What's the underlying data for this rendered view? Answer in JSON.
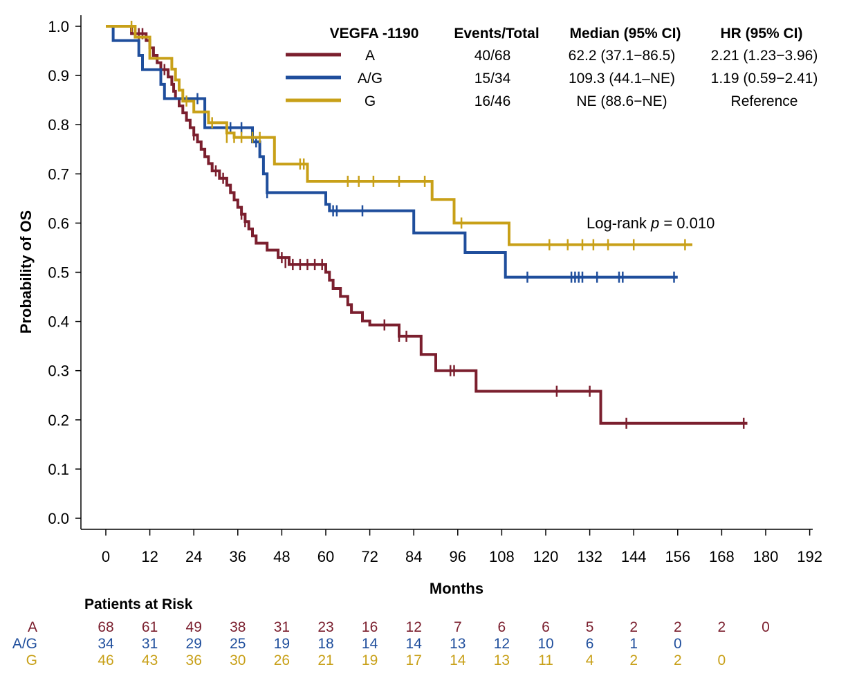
{
  "chart_data": {
    "type": "line",
    "subtype": "kaplan-meier",
    "title": "",
    "xlabel": "Months",
    "ylabel": "Probability of OS",
    "xlim": [
      0,
      192
    ],
    "ylim": [
      0,
      1
    ],
    "xticks": [
      0,
      12,
      24,
      36,
      48,
      60,
      72,
      84,
      96,
      108,
      120,
      132,
      144,
      156,
      168,
      180,
      192
    ],
    "yticks": [
      "0.0",
      "0.1",
      "0.2",
      "0.3",
      "0.4",
      "0.5",
      "0.6",
      "0.7",
      "0.8",
      "0.9",
      "1.0"
    ],
    "legend": {
      "headers": [
        "VEGFA -1190",
        "Events/Total",
        "Median (95% CI)",
        "HR (95% CI)"
      ],
      "placement": "top-right"
    },
    "annotation": {
      "prefix": "Log-rank ",
      "p_symbol": "p",
      "suffix": " = 0.010"
    },
    "series": [
      {
        "name": "A",
        "color": "#7b1f2e",
        "events_total": "40/68",
        "median": "62.2 (37.1−86.5)",
        "hr": "2.21 (1.23−3.96)",
        "steps": [
          [
            0,
            1.0
          ],
          [
            7,
            0.985
          ],
          [
            11,
            0.971
          ],
          [
            12,
            0.956
          ],
          [
            13,
            0.941
          ],
          [
            14,
            0.926
          ],
          [
            15,
            0.912
          ],
          [
            17,
            0.897
          ],
          [
            18,
            0.882
          ],
          [
            18.5,
            0.868
          ],
          [
            19,
            0.853
          ],
          [
            20,
            0.838
          ],
          [
            21,
            0.824
          ],
          [
            22,
            0.809
          ],
          [
            23,
            0.794
          ],
          [
            24,
            0.779
          ],
          [
            25,
            0.765
          ],
          [
            26,
            0.75
          ],
          [
            27,
            0.735
          ],
          [
            28,
            0.721
          ],
          [
            29,
            0.706
          ],
          [
            31,
            0.691
          ],
          [
            33,
            0.677
          ],
          [
            34,
            0.662
          ],
          [
            35,
            0.647
          ],
          [
            36,
            0.632
          ],
          [
            37,
            0.618
          ],
          [
            38,
            0.603
          ],
          [
            39,
            0.588
          ],
          [
            40,
            0.574
          ],
          [
            41,
            0.559
          ],
          [
            44,
            0.545
          ],
          [
            47,
            0.53
          ],
          [
            50,
            0.516
          ],
          [
            60,
            0.5
          ],
          [
            61,
            0.484
          ],
          [
            62,
            0.467
          ],
          [
            64,
            0.451
          ],
          [
            66,
            0.434
          ],
          [
            67,
            0.418
          ],
          [
            70,
            0.401
          ],
          [
            72,
            0.393
          ],
          [
            80,
            0.37
          ],
          [
            86,
            0.333
          ],
          [
            90,
            0.3
          ],
          [
            101,
            0.258
          ],
          [
            135,
            0.193
          ],
          [
            175,
            0.193
          ]
        ],
        "censor": [
          [
            9,
            0.985
          ],
          [
            10,
            0.985
          ],
          [
            16,
            0.912
          ],
          [
            24,
            0.779
          ],
          [
            30,
            0.706
          ],
          [
            32,
            0.691
          ],
          [
            37,
            0.618
          ],
          [
            38,
            0.603
          ],
          [
            48,
            0.53
          ],
          [
            49,
            0.52
          ],
          [
            51,
            0.516
          ],
          [
            53,
            0.516
          ],
          [
            55,
            0.516
          ],
          [
            57,
            0.516
          ],
          [
            59,
            0.516
          ],
          [
            76,
            0.393
          ],
          [
            80,
            0.37
          ],
          [
            82,
            0.37
          ],
          [
            94,
            0.3
          ],
          [
            95,
            0.3
          ],
          [
            123,
            0.258
          ],
          [
            132,
            0.258
          ],
          [
            142,
            0.193
          ],
          [
            174,
            0.193
          ]
        ]
      },
      {
        "name": "A/G",
        "color": "#1f4e9c",
        "events_total": "15/34",
        "median": "109.3 (44.1–NE)",
        "hr": "1.19 (0.59−2.41)",
        "steps": [
          [
            0,
            1.0
          ],
          [
            2,
            0.971
          ],
          [
            9,
            0.941
          ],
          [
            10,
            0.912
          ],
          [
            15,
            0.882
          ],
          [
            16,
            0.853
          ],
          [
            27,
            0.794
          ],
          [
            40,
            0.765
          ],
          [
            42,
            0.735
          ],
          [
            43,
            0.7
          ],
          [
            44,
            0.662
          ],
          [
            60,
            0.638
          ],
          [
            61,
            0.625
          ],
          [
            84,
            0.58
          ],
          [
            98,
            0.54
          ],
          [
            109,
            0.49
          ],
          [
            156,
            0.49
          ]
        ],
        "censor": [
          [
            25,
            0.853
          ],
          [
            34,
            0.794
          ],
          [
            37,
            0.794
          ],
          [
            41,
            0.765
          ],
          [
            44,
            0.662
          ],
          [
            62,
            0.625
          ],
          [
            63,
            0.625
          ],
          [
            70,
            0.625
          ],
          [
            115,
            0.49
          ],
          [
            127,
            0.49
          ],
          [
            128,
            0.49
          ],
          [
            129,
            0.49
          ],
          [
            130,
            0.49
          ],
          [
            134,
            0.49
          ],
          [
            140,
            0.49
          ],
          [
            141,
            0.49
          ],
          [
            155,
            0.49
          ]
        ]
      },
      {
        "name": "G",
        "color": "#c8a018",
        "events_total": "16/46",
        "median": "NE (88.6−NE)",
        "hr": "Reference",
        "steps": [
          [
            0,
            1.0
          ],
          [
            8,
            0.978
          ],
          [
            12,
            0.935
          ],
          [
            18,
            0.913
          ],
          [
            19,
            0.891
          ],
          [
            20,
            0.87
          ],
          [
            21,
            0.848
          ],
          [
            24,
            0.826
          ],
          [
            28,
            0.804
          ],
          [
            33,
            0.783
          ],
          [
            35,
            0.774
          ],
          [
            46,
            0.72
          ],
          [
            55,
            0.685
          ],
          [
            89,
            0.648
          ],
          [
            95,
            0.6
          ],
          [
            110,
            0.556
          ],
          [
            160,
            0.556
          ]
        ],
        "censor": [
          [
            7,
            1.0
          ],
          [
            22,
            0.848
          ],
          [
            29,
            0.804
          ],
          [
            33,
            0.774
          ],
          [
            35,
            0.774
          ],
          [
            37,
            0.774
          ],
          [
            40,
            0.774
          ],
          [
            42,
            0.774
          ],
          [
            53,
            0.72
          ],
          [
            54,
            0.72
          ],
          [
            55,
            0.71
          ],
          [
            66,
            0.685
          ],
          [
            69,
            0.685
          ],
          [
            73,
            0.685
          ],
          [
            80,
            0.685
          ],
          [
            87,
            0.685
          ],
          [
            97,
            0.6
          ],
          [
            121,
            0.556
          ],
          [
            126,
            0.556
          ],
          [
            130,
            0.556
          ],
          [
            133,
            0.556
          ],
          [
            137,
            0.556
          ],
          [
            144,
            0.556
          ],
          [
            158,
            0.556
          ]
        ]
      }
    ],
    "risk_table": {
      "title": "Patients at Risk",
      "times": [
        0,
        12,
        24,
        36,
        48,
        60,
        72,
        84,
        96,
        108,
        120,
        132,
        144,
        156,
        168,
        180
      ],
      "rows": [
        {
          "label": "A",
          "color": "#7b1f2e",
          "values": [
            "68",
            "61",
            "49",
            "38",
            "31",
            "23",
            "16",
            "12",
            "7",
            "6",
            "6",
            "5",
            "2",
            "2",
            "2",
            "0"
          ]
        },
        {
          "label": "A/G",
          "color": "#1f4e9c",
          "values": [
            "34",
            "31",
            "29",
            "25",
            "19",
            "18",
            "14",
            "14",
            "13",
            "12",
            "10",
            "6",
            "1",
            "0"
          ]
        },
        {
          "label": "G",
          "color": "#c8a018",
          "values": [
            "46",
            "43",
            "36",
            "30",
            "26",
            "21",
            "19",
            "17",
            "14",
            "13",
            "11",
            "4",
            "2",
            "2",
            "0"
          ]
        }
      ]
    }
  }
}
